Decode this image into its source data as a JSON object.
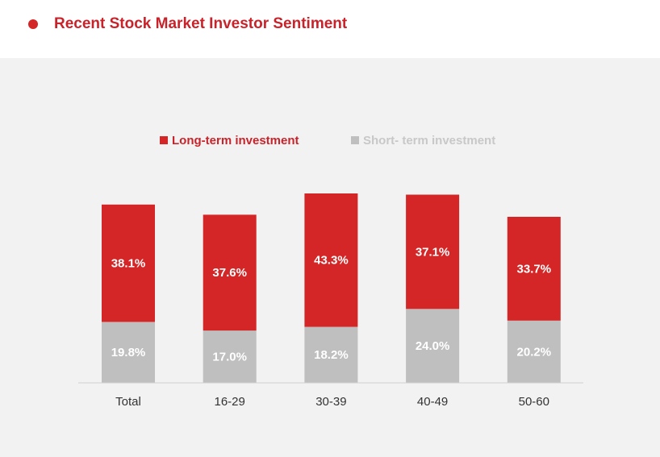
{
  "header": {
    "title": "Recent Stock Market Investor Sentiment"
  },
  "colors": {
    "accent": "#d42626",
    "long_term": "#d42626",
    "short_term": "#bfbfbf",
    "legend_long_text": "#c8232b",
    "legend_short_text": "#c8c8c8"
  },
  "chart_data": {
    "type": "bar",
    "stacked": true,
    "title": "Recent Stock Market Investor Sentiment",
    "categories": [
      "Total",
      "16-29",
      "30-39",
      "40-49",
      "50-60"
    ],
    "series": [
      {
        "name": "Short- term investment",
        "values": [
          19.8,
          17.0,
          18.2,
          24.0,
          20.2
        ],
        "labels": [
          "19.8%",
          "17.0%",
          "18.2%",
          "24.0%",
          "20.2%"
        ]
      },
      {
        "name": "Long-term investment",
        "values": [
          38.1,
          37.6,
          43.3,
          37.1,
          33.7
        ],
        "labels": [
          "38.1%",
          "37.6%",
          "43.3%",
          "37.1%",
          "33.7%"
        ]
      }
    ],
    "legend": {
      "position": "top-center",
      "entries": [
        "Long-term investment",
        "Short- term investment"
      ]
    },
    "ylim": [
      0,
      61.5
    ],
    "grid": false
  }
}
